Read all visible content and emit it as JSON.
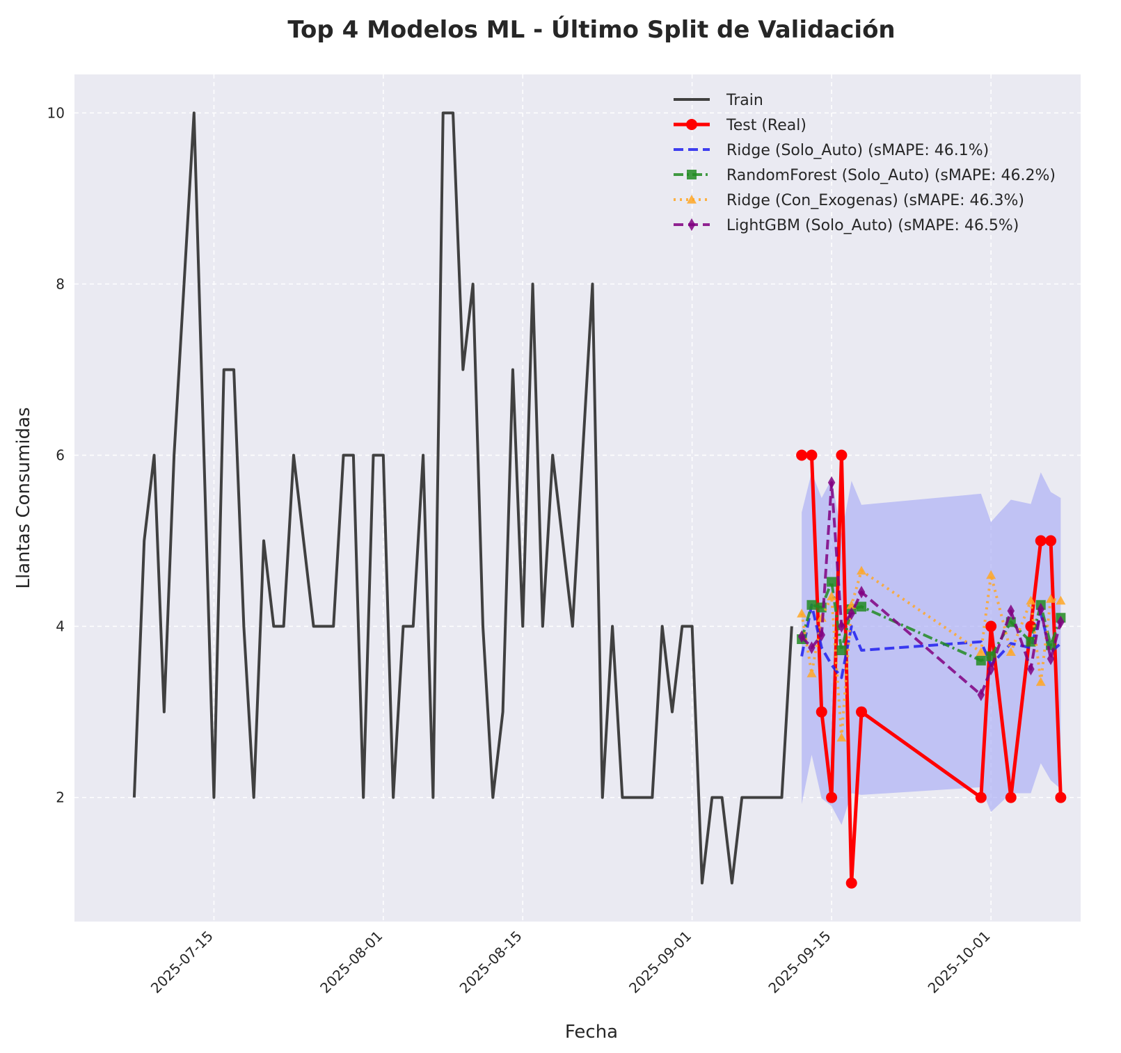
{
  "chart_data": {
    "type": "line",
    "title": "Top 4 Modelos ML - Último Split de Validación",
    "xlabel": "Fecha",
    "ylabel": "Llantas Consumidas",
    "xlim": [
      "2025-07-01",
      "2025-10-10"
    ],
    "ylim": [
      0.55,
      10.45
    ],
    "grid": true,
    "legend_position": "top-right",
    "x_ticks": [
      "2025-07-15",
      "2025-08-01",
      "2025-08-15",
      "2025-09-01",
      "2025-09-15",
      "2025-10-01"
    ],
    "y_ticks": [
      2,
      4,
      6,
      8,
      10
    ],
    "confidence_band": {
      "color": "#a4a6f5",
      "x": [
        "2025-09-12",
        "2025-09-13",
        "2025-09-14",
        "2025-09-15",
        "2025-09-16",
        "2025-09-17",
        "2025-09-18",
        "2025-09-30",
        "2025-10-01",
        "2025-10-03",
        "2025-10-05",
        "2025-10-06",
        "2025-10-07",
        "2025-10-08"
      ],
      "lower": [
        1.92,
        2.5,
        1.99,
        1.9,
        1.68,
        2.05,
        2.03,
        2.12,
        1.83,
        2.05,
        2.05,
        2.4,
        2.2,
        2.1
      ],
      "upper": [
        5.33,
        5.8,
        5.5,
        5.72,
        5.08,
        5.7,
        5.42,
        5.55,
        5.22,
        5.48,
        5.43,
        5.8,
        5.57,
        5.5
      ]
    },
    "series": [
      {
        "name": "Train",
        "color": "#404040",
        "style": "solid",
        "marker": "none",
        "x": [
          "2025-07-07",
          "2025-07-08",
          "2025-07-09",
          "2025-07-10",
          "2025-07-11",
          "2025-07-12",
          "2025-07-13",
          "2025-07-14",
          "2025-07-15",
          "2025-07-16",
          "2025-07-17",
          "2025-07-18",
          "2025-07-19",
          "2025-07-20",
          "2025-07-21",
          "2025-07-22",
          "2025-07-23",
          "2025-07-24",
          "2025-07-25",
          "2025-07-26",
          "2025-07-27",
          "2025-07-28",
          "2025-07-29",
          "2025-07-30",
          "2025-07-31",
          "2025-08-01",
          "2025-08-02",
          "2025-08-03",
          "2025-08-04",
          "2025-08-05",
          "2025-08-06",
          "2025-08-07",
          "2025-08-08",
          "2025-08-09",
          "2025-08-10",
          "2025-08-11",
          "2025-08-12",
          "2025-08-13",
          "2025-08-14",
          "2025-08-15",
          "2025-08-16",
          "2025-08-17",
          "2025-08-18",
          "2025-08-19",
          "2025-08-20",
          "2025-08-21",
          "2025-08-22",
          "2025-08-23",
          "2025-08-24",
          "2025-08-25",
          "2025-08-26",
          "2025-08-27",
          "2025-08-28",
          "2025-08-29",
          "2025-08-30",
          "2025-08-31",
          "2025-09-01",
          "2025-09-02",
          "2025-09-03",
          "2025-09-04",
          "2025-09-05",
          "2025-09-06",
          "2025-09-07",
          "2025-09-08",
          "2025-09-09",
          "2025-09-10",
          "2025-09-11"
        ],
        "y": [
          2,
          5,
          6,
          3,
          6,
          8,
          10,
          6,
          2,
          7,
          7,
          4,
          2,
          5,
          4,
          4,
          6,
          5,
          4,
          4,
          4,
          6,
          6,
          2,
          6,
          6,
          2,
          4,
          4,
          6,
          2,
          10,
          10,
          7,
          8,
          4,
          2,
          3,
          7,
          4,
          8,
          4,
          6,
          5,
          4,
          6,
          8,
          2,
          4,
          2,
          2,
          2,
          2,
          4,
          3,
          4,
          4,
          1,
          2,
          2,
          1,
          2,
          2,
          2,
          2,
          2,
          4
        ]
      },
      {
        "name": "Test (Real)",
        "color": "#ff0000",
        "style": "solid",
        "marker": "circle",
        "x": [
          "2025-09-12",
          "2025-09-13",
          "2025-09-14",
          "2025-09-15",
          "2025-09-16",
          "2025-09-17",
          "2025-09-18",
          "2025-09-30",
          "2025-10-01",
          "2025-10-03",
          "2025-10-05",
          "2025-10-06",
          "2025-10-07",
          "2025-10-08"
        ],
        "y": [
          6,
          6,
          3,
          2,
          6,
          1,
          3,
          2,
          4,
          2,
          4,
          5,
          5,
          2
        ]
      },
      {
        "name": "Ridge (Solo_Auto) (sMAPE: 46.1%)",
        "color": "#2020ee",
        "style": "dashed",
        "marker": "none",
        "x": [
          "2025-09-12",
          "2025-09-13",
          "2025-09-14",
          "2025-09-15",
          "2025-09-16",
          "2025-09-17",
          "2025-09-18",
          "2025-09-30",
          "2025-10-01",
          "2025-10-03",
          "2025-10-05",
          "2025-10-06",
          "2025-10-07",
          "2025-10-08"
        ],
        "y": [
          3.65,
          4.25,
          3.75,
          3.55,
          3.4,
          4.0,
          3.72,
          3.82,
          3.55,
          3.8,
          3.75,
          4.15,
          3.7,
          3.8
        ]
      },
      {
        "name": "RandomForest (Solo_Auto) (sMAPE: 46.2%)",
        "color": "#228b22",
        "style": "dashdot",
        "marker": "square",
        "x": [
          "2025-09-12",
          "2025-09-13",
          "2025-09-14",
          "2025-09-15",
          "2025-09-16",
          "2025-09-17",
          "2025-09-18",
          "2025-09-30",
          "2025-10-01",
          "2025-10-03",
          "2025-10-05",
          "2025-10-06",
          "2025-10-07",
          "2025-10-08"
        ],
        "y": [
          3.85,
          4.25,
          4.22,
          4.52,
          3.72,
          4.2,
          4.23,
          3.6,
          3.65,
          4.05,
          3.82,
          4.25,
          3.78,
          4.1
        ]
      },
      {
        "name": "Ridge (Con_Exogenas) (sMAPE: 46.3%)",
        "color": "#ffa726",
        "style": "dotted",
        "marker": "triangle",
        "x": [
          "2025-09-12",
          "2025-09-13",
          "2025-09-14",
          "2025-09-15",
          "2025-09-16",
          "2025-09-17",
          "2025-09-18",
          "2025-09-30",
          "2025-10-01",
          "2025-10-03",
          "2025-10-05",
          "2025-10-06",
          "2025-10-07",
          "2025-10-08"
        ],
        "y": [
          4.15,
          3.45,
          4.1,
          4.35,
          2.7,
          4.25,
          4.65,
          3.7,
          4.6,
          3.7,
          4.3,
          3.35,
          4.32,
          4.3
        ]
      },
      {
        "name": "LightGBM (Solo_Auto) (sMAPE: 46.5%)",
        "color": "#800080",
        "style": "dashed",
        "marker": "diamond",
        "x": [
          "2025-09-12",
          "2025-09-13",
          "2025-09-14",
          "2025-09-15",
          "2025-09-16",
          "2025-09-17",
          "2025-09-18",
          "2025-09-30",
          "2025-10-01",
          "2025-10-03",
          "2025-10-05",
          "2025-10-06",
          "2025-10-07",
          "2025-10-08"
        ],
        "y": [
          3.88,
          3.75,
          3.9,
          5.68,
          4.0,
          4.15,
          4.4,
          3.2,
          3.5,
          4.18,
          3.5,
          4.2,
          3.62,
          4.05
        ]
      }
    ]
  }
}
